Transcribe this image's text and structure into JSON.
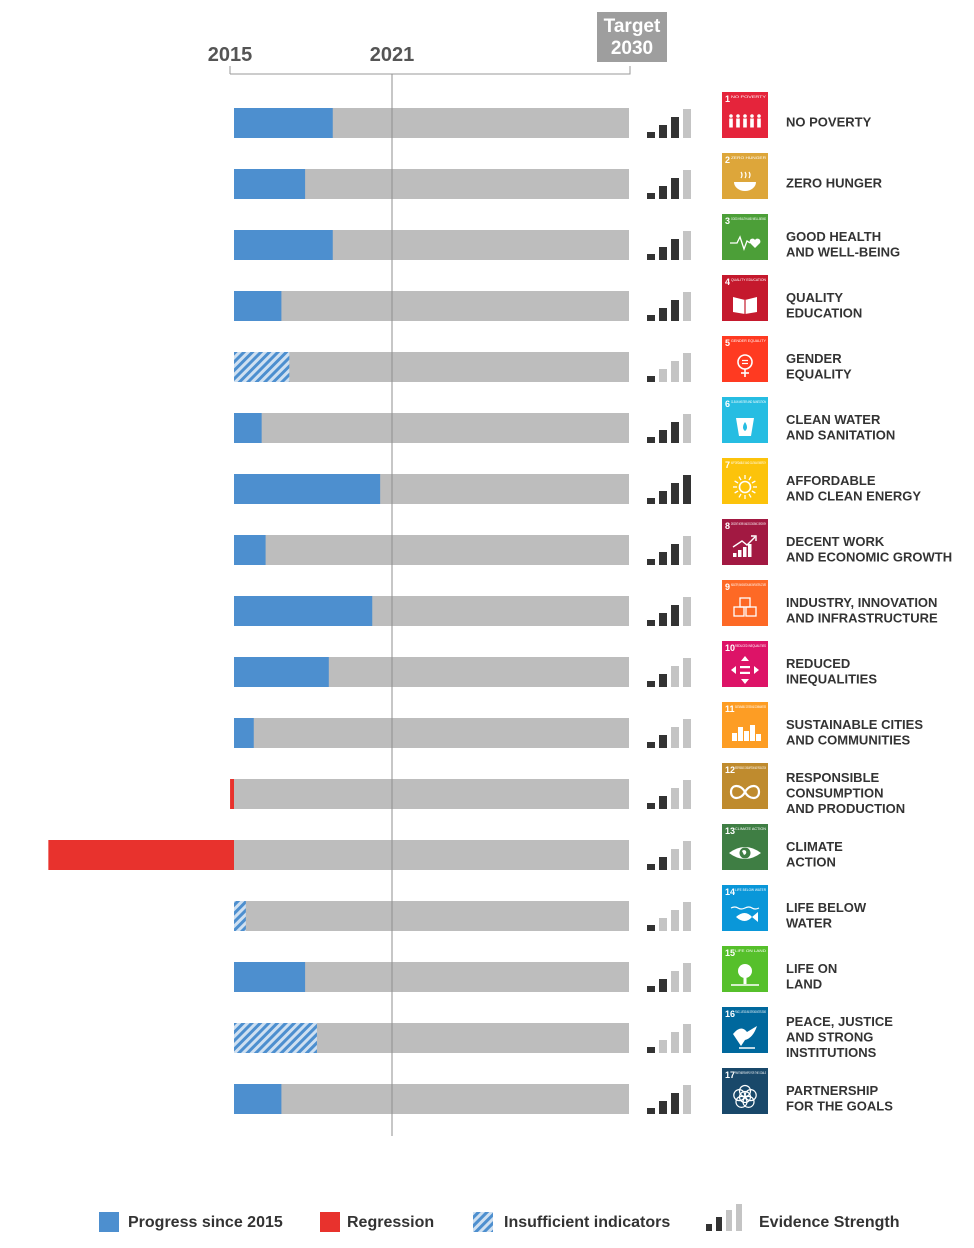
{
  "chart_data": {
    "type": "bar",
    "header": {
      "start_year": "2015",
      "current_year": "2021",
      "target_line1": "Target",
      "target_line2": "2030"
    },
    "scale": {
      "start": 2015,
      "current": 2021,
      "target": 2030
    },
    "colors": {
      "progress": "#4d8fcf",
      "regression": "#e8322d",
      "remaining": "#bdbdbd",
      "evidence_strong": "#333333",
      "evidence_weak": "#c4c4c4",
      "axis": "#9a9a9a",
      "target_box": "#9e9e9e"
    },
    "goals": [
      {
        "num": "1",
        "icon_title": "NO POVERTY",
        "label_lines": [
          "NO POVERTY"
        ],
        "color": "#e5243b",
        "kind": "progress",
        "value": 0.25,
        "evidence": 3,
        "icon": "people-icon"
      },
      {
        "num": "2",
        "icon_title": "ZERO HUNGER",
        "label_lines": [
          "ZERO HUNGER"
        ],
        "color": "#dda63a",
        "kind": "progress",
        "value": 0.18,
        "evidence": 3,
        "icon": "bowl-icon"
      },
      {
        "num": "3",
        "icon_title": "GOOD HEALTH AND WELL-BEING",
        "label_lines": [
          "GOOD HEALTH",
          "AND WELL-BEING"
        ],
        "color": "#4c9f38",
        "kind": "progress",
        "value": 0.25,
        "evidence": 3,
        "icon": "heartbeat-icon"
      },
      {
        "num": "4",
        "icon_title": "QUALITY EDUCATION",
        "label_lines": [
          "QUALITY",
          "EDUCATION"
        ],
        "color": "#c5192d",
        "kind": "progress",
        "value": 0.12,
        "evidence": 3,
        "icon": "book-icon"
      },
      {
        "num": "5",
        "icon_title": "GENDER EQUALITY",
        "label_lines": [
          "GENDER",
          "EQUALITY"
        ],
        "color": "#ff3a21",
        "kind": "insufficient",
        "value": 0.14,
        "evidence": 1,
        "icon": "gender-icon"
      },
      {
        "num": "6",
        "icon_title": "CLEAN WATER AND SANITATION",
        "label_lines": [
          "CLEAN WATER",
          "AND SANITATION"
        ],
        "color": "#26bde2",
        "kind": "progress",
        "value": 0.07,
        "evidence": 3,
        "icon": "water-drop-icon"
      },
      {
        "num": "7",
        "icon_title": "AFFORDABLE AND CLEAN ENERGY",
        "label_lines": [
          "AFFORDABLE",
          "AND CLEAN ENERGY"
        ],
        "color": "#fcc30b",
        "kind": "progress",
        "value": 0.37,
        "evidence": 4,
        "icon": "sun-icon"
      },
      {
        "num": "8",
        "icon_title": "DECENT WORK AND ECONOMIC GROWTH",
        "label_lines": [
          "DECENT WORK",
          "AND ECONOMIC GROWTH"
        ],
        "color": "#a21942",
        "kind": "progress",
        "value": 0.08,
        "evidence": 3,
        "icon": "growth-chart-icon"
      },
      {
        "num": "9",
        "icon_title": "INDUSTRY, INNOVATION AND INFRASTRUCTURE",
        "label_lines": [
          "INDUSTRY, INNOVATION",
          "AND INFRASTRUCTURE"
        ],
        "color": "#fd6925",
        "kind": "progress",
        "value": 0.35,
        "evidence": 3,
        "icon": "cubes-icon"
      },
      {
        "num": "10",
        "icon_title": "REDUCED INEQUALITIES",
        "label_lines": [
          "REDUCED",
          "INEQUALITIES"
        ],
        "color": "#dd1367",
        "kind": "progress",
        "value": 0.24,
        "evidence": 2,
        "icon": "equality-arrows-icon"
      },
      {
        "num": "11",
        "icon_title": "SUSTAINABLE CITIES AND COMMUNITIES",
        "label_lines": [
          "SUSTAINABLE CITIES",
          "AND COMMUNITIES"
        ],
        "color": "#fd9d24",
        "kind": "progress",
        "value": 0.05,
        "evidence": 2,
        "icon": "city-icon"
      },
      {
        "num": "12",
        "icon_title": "RESPONSIBLE CONSUMPTION AND PRODUCTION",
        "label_lines": [
          "RESPONSIBLE",
          "CONSUMPTION",
          "AND PRODUCTION"
        ],
        "color": "#bf8b2e",
        "kind": "regression",
        "value": -0.01,
        "evidence": 2,
        "icon": "infinity-icon"
      },
      {
        "num": "13",
        "icon_title": "CLIMATE ACTION",
        "label_lines": [
          "CLIMATE",
          "ACTION"
        ],
        "color": "#3f7e44",
        "kind": "regression",
        "value": -0.47,
        "evidence": 2,
        "icon": "eye-globe-icon"
      },
      {
        "num": "14",
        "icon_title": "LIFE BELOW WATER",
        "label_lines": [
          "LIFE BELOW",
          "WATER"
        ],
        "color": "#0a97d9",
        "kind": "insufficient",
        "value": 0.03,
        "evidence": 1,
        "icon": "fish-icon"
      },
      {
        "num": "15",
        "icon_title": "LIFE ON LAND",
        "label_lines": [
          "LIFE ON",
          "LAND"
        ],
        "color": "#56c02b",
        "kind": "progress",
        "value": 0.18,
        "evidence": 2,
        "icon": "tree-icon"
      },
      {
        "num": "16",
        "icon_title": "PEACE, JUSTICE AND STRONG INSTITUTIONS",
        "label_lines": [
          "PEACE, JUSTICE",
          "AND STRONG",
          "INSTITUTIONS"
        ],
        "color": "#00689d",
        "kind": "insufficient",
        "value": 0.21,
        "evidence": 1,
        "icon": "dove-icon"
      },
      {
        "num": "17",
        "icon_title": "PARTNERSHIPS FOR THE GOALS",
        "label_lines": [
          "PARTNERSHIP",
          "FOR THE GOALS"
        ],
        "color": "#19486a",
        "kind": "progress",
        "value": 0.12,
        "evidence": 3,
        "icon": "rings-icon"
      }
    ],
    "legend": [
      {
        "label": "Progress since 2015",
        "kind": "progress"
      },
      {
        "label": "Regression",
        "kind": "regression"
      },
      {
        "label": "Insufficient indicators",
        "kind": "insufficient"
      },
      {
        "label": "Evidence Strength",
        "kind": "evidence"
      }
    ]
  }
}
